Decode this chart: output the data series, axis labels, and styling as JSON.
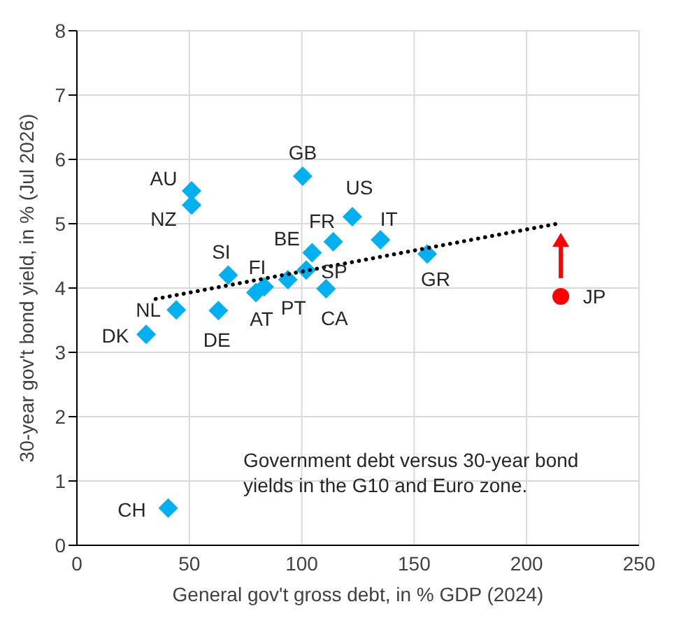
{
  "chart_data": {
    "type": "scatter",
    "xlabel": "General gov't gross debt, in % GDP (2024)",
    "ylabel": "30-year gov't bond yield, in % (Jul 2026)",
    "xlim": [
      0,
      250
    ],
    "xticks": [
      0,
      50,
      100,
      150,
      200,
      250
    ],
    "ylim": [
      0,
      8
    ],
    "yticks": [
      0,
      1,
      2,
      3,
      4,
      5,
      6,
      7,
      8
    ],
    "grid": true,
    "legend": false,
    "series": [
      {
        "marker": "diamond",
        "color": "#00b0f0",
        "x": [
          51,
          51,
          100.4,
          122.5,
          114,
          135,
          67.3,
          104.6,
          83.3,
          102,
          44.2,
          30.8,
          62.9,
          79.6,
          93.8,
          110.8,
          155.8,
          40.6
        ],
        "values": [
          5.51,
          5.29,
          5.74,
          5.11,
          4.72,
          4.75,
          4.2,
          4.55,
          4.02,
          4.28,
          3.66,
          3.28,
          3.65,
          3.93,
          4.13,
          3.99,
          4.53,
          0.58
        ]
      },
      {
        "marker": "circle",
        "color": "#ff0000",
        "x": [
          215.2
        ],
        "values": [
          3.87
        ]
      },
      {
        "type": "line",
        "marker": "none",
        "line_style": "dotted",
        "color": "#000000",
        "x": [
          35,
          215.2
        ],
        "values": [
          3.83,
          5.01
        ]
      }
    ],
    "annotations": [
      {
        "text": "AU",
        "x": 51,
        "y": 5.51
      },
      {
        "text": "NZ",
        "x": 51,
        "y": 5.29
      },
      {
        "text": "GB",
        "x": 100.4,
        "y": 5.74
      },
      {
        "text": "US",
        "x": 122.5,
        "y": 5.11
      },
      {
        "text": "FR",
        "x": 114,
        "y": 4.72
      },
      {
        "text": "IT",
        "x": 135,
        "y": 4.75
      },
      {
        "text": "SI",
        "x": 67.3,
        "y": 4.2
      },
      {
        "text": "BE",
        "x": 104.6,
        "y": 4.55
      },
      {
        "text": "FI",
        "x": 83.3,
        "y": 4.02
      },
      {
        "text": "SP",
        "x": 102,
        "y": 4.28
      },
      {
        "text": "NL",
        "x": 44.2,
        "y": 3.66
      },
      {
        "text": "DK",
        "x": 30.8,
        "y": 3.28
      },
      {
        "text": "DE",
        "x": 62.9,
        "y": 3.65
      },
      {
        "text": "AT",
        "x": 79.6,
        "y": 3.93
      },
      {
        "text": "PT",
        "x": 93.8,
        "y": 4.13
      },
      {
        "text": "CA",
        "x": 110.8,
        "y": 3.99
      },
      {
        "text": "GR",
        "x": 155.8,
        "y": 4.53
      },
      {
        "text": "CH",
        "x": 40.6,
        "y": 0.58
      },
      {
        "text": "JP",
        "x": 215.2,
        "y": 3.87
      },
      "Government debt versus 30-year bond yields in the G10 and Euro zone."
    ]
  }
}
